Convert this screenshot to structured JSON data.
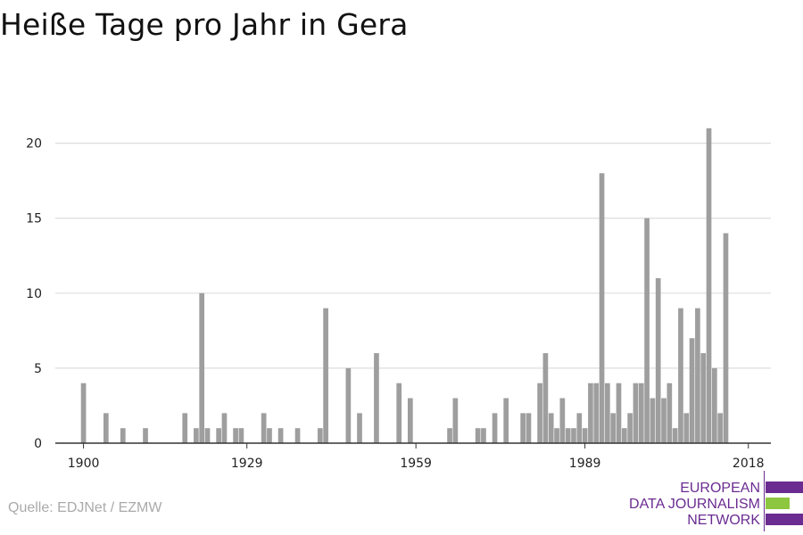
{
  "title": "Heiße Tage pro Jahr in Gera",
  "source": "Quelle: EDJNet / EZMW",
  "logo": {
    "line1": "EUROPEAN",
    "line2": "DATA JOURNALISM",
    "line3": "NETWORK",
    "colors": {
      "purple": "#6a2c91",
      "green": "#8dc63f"
    }
  },
  "colors": {
    "bar": "#9e9e9e",
    "grid": "#dddddd",
    "axis": "#333333",
    "text": "#222222"
  },
  "chart_data": {
    "type": "bar",
    "title": "Heiße Tage pro Jahr in Gera",
    "xlabel": "",
    "ylabel": "",
    "xlim": [
      1895,
      2022
    ],
    "ylim": [
      0,
      22
    ],
    "grid": true,
    "x_ticks": [
      1900,
      1929,
      1959,
      1989,
      2018
    ],
    "y_ticks": [
      0,
      5,
      10,
      15,
      20
    ],
    "x": [
      1900,
      1904,
      1907,
      1911,
      1918,
      1920,
      1921,
      1922,
      1924,
      1925,
      1927,
      1928,
      1932,
      1933,
      1935,
      1938,
      1942,
      1943,
      1947,
      1949,
      1952,
      1956,
      1958,
      1965,
      1966,
      1970,
      1971,
      1973,
      1975,
      1978,
      1979,
      1981,
      1982,
      1983,
      1984,
      1985,
      1986,
      1987,
      1988,
      1989,
      1990,
      1991,
      1992,
      1993,
      1994,
      1995,
      1996,
      1997,
      1998,
      1999,
      2000,
      2001,
      2002,
      2003,
      2004,
      2005,
      2006,
      2007,
      2008,
      2009,
      2010,
      2011,
      2012,
      2013,
      2014,
      2015,
      2016,
      2017,
      2018
    ],
    "values": [
      4,
      2,
      1,
      1,
      2,
      1,
      10,
      1,
      1,
      2,
      1,
      1,
      2,
      1,
      1,
      1,
      1,
      9,
      5,
      2,
      6,
      4,
      3,
      1,
      3,
      1,
      1,
      2,
      3,
      2,
      2,
      4,
      6,
      2,
      1,
      3,
      1,
      1,
      2,
      1,
      4,
      4,
      18,
      4,
      2,
      4,
      1,
      2,
      4,
      4,
      15,
      3,
      11,
      3,
      4,
      1,
      9,
      2,
      7,
      9,
      6,
      21,
      5,
      2,
      14,
      0,
      0,
      0,
      0
    ]
  }
}
